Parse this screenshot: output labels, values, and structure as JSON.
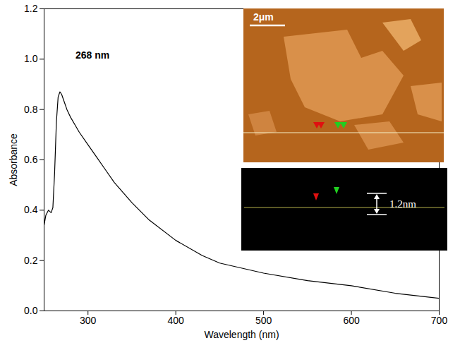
{
  "chart_data": {
    "type": "line",
    "x": [
      250,
      252,
      255,
      258,
      260,
      262,
      264,
      266,
      268,
      270,
      273,
      276,
      280,
      285,
      290,
      300,
      310,
      320,
      330,
      340,
      350,
      370,
      400,
      430,
      450,
      500,
      550,
      600,
      650,
      700
    ],
    "values": [
      0.34,
      0.38,
      0.4,
      0.39,
      0.41,
      0.55,
      0.75,
      0.85,
      0.87,
      0.86,
      0.83,
      0.8,
      0.77,
      0.74,
      0.71,
      0.66,
      0.61,
      0.56,
      0.51,
      0.47,
      0.43,
      0.36,
      0.28,
      0.22,
      0.19,
      0.15,
      0.12,
      0.1,
      0.07,
      0.05
    ],
    "color": "#000000",
    "xlim": [
      250,
      700
    ],
    "xticks": [
      300,
      400,
      500,
      600,
      700
    ],
    "ylim": [
      0,
      1.2
    ],
    "yticks": [
      {
        "value": 0,
        "label": "0.0"
      },
      0.2,
      0.4,
      0.6,
      0.8,
      {
        "value": 1,
        "label": "1.0"
      },
      1.2
    ],
    "x_label": "Wavelength (nm)",
    "y_label": "Absorbance",
    "annotations": [
      {
        "text": "268 nm",
        "x": 268,
        "y": 0.87
      }
    ],
    "inset": {
      "scale_bar": "2μm",
      "height_label": "1.2nm"
    }
  }
}
